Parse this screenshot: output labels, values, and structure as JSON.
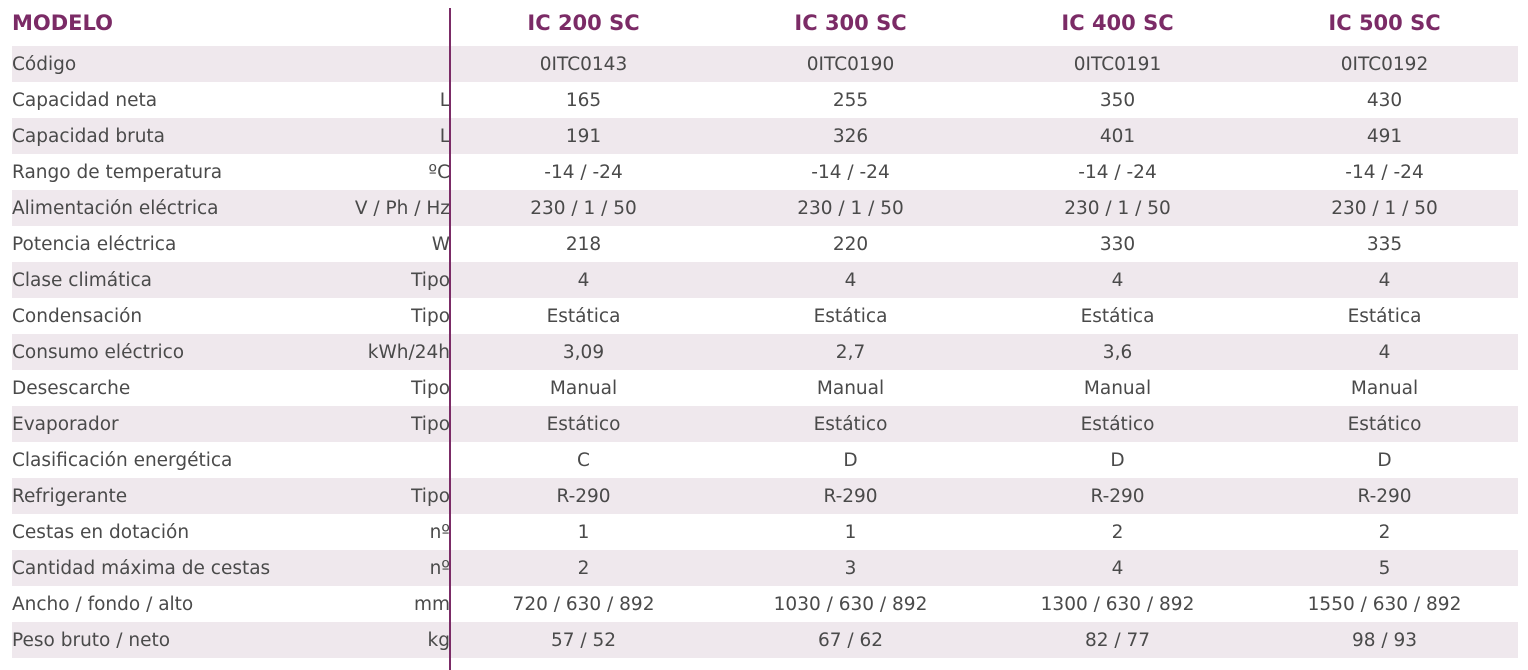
{
  "header": {
    "model_label": "MODELO",
    "models": [
      "IC 200 SC",
      "IC 300 SC",
      "IC 400  SC",
      "IC 500 SC"
    ]
  },
  "rows": [
    {
      "label": "Código",
      "unit": "",
      "values": [
        "0ITC0143",
        "0ITC0190",
        "0ITC0191",
        "0ITC0192"
      ]
    },
    {
      "label": "Capacidad neta",
      "unit": "L",
      "values": [
        "165",
        "255",
        "350",
        "430"
      ]
    },
    {
      "label": "Capacidad bruta",
      "unit": "L",
      "values": [
        "191",
        "326",
        "401",
        "491"
      ]
    },
    {
      "label": "Rango de temperatura",
      "unit": "ºC",
      "values": [
        "-14 / -24",
        "-14 / -24",
        "-14 / -24",
        "-14 / -24"
      ]
    },
    {
      "label": "Alimentación eléctrica",
      "unit": "V / Ph / Hz",
      "values": [
        "230 / 1 / 50",
        "230 / 1 / 50",
        "230 / 1 / 50",
        "230 / 1 / 50"
      ]
    },
    {
      "label": "Potencia eléctrica",
      "unit": "W",
      "values": [
        "218",
        "220",
        "330",
        "335"
      ]
    },
    {
      "label": "Clase climática",
      "unit": "Tipo",
      "values": [
        "4",
        "4",
        "4",
        "4"
      ]
    },
    {
      "label": "Condensación",
      "unit": "Tipo",
      "values": [
        "Estática",
        "Estática",
        "Estática",
        "Estática"
      ]
    },
    {
      "label": "Consumo eléctrico",
      "unit": "kWh/24h",
      "values": [
        "3,09",
        "2,7",
        "3,6",
        "4"
      ]
    },
    {
      "label": "Desescarche",
      "unit": "Tipo",
      "values": [
        "Manual",
        "Manual",
        "Manual",
        "Manual"
      ]
    },
    {
      "label": "Evaporador",
      "unit": "Tipo",
      "values": [
        "Estático",
        "Estático",
        "Estático",
        "Estático"
      ]
    },
    {
      "label": "Clasificación energética",
      "unit": "",
      "values": [
        "C",
        "D",
        "D",
        "D"
      ]
    },
    {
      "label": "Refrigerante",
      "unit": "Tipo",
      "values": [
        "R-290",
        "R-290",
        "R-290",
        "R-290"
      ]
    },
    {
      "label": "Cestas en dotación",
      "unit": "nº",
      "values": [
        "1",
        "1",
        "2",
        "2"
      ]
    },
    {
      "label": "Cantidad máxima de cestas",
      "unit": "nº",
      "values": [
        "2",
        "3",
        "4",
        "5"
      ]
    },
    {
      "label": "Ancho / fondo / alto",
      "unit": "mm",
      "values": [
        "720 / 630 / 892",
        "1030 / 630 / 892",
        "1300 / 630 / 892",
        "1550 / 630 / 892"
      ]
    },
    {
      "label": "Peso bruto / neto",
      "unit": "kg",
      "values": [
        "57 / 52",
        "67 / 62",
        "82 / 77",
        "98 / 93"
      ]
    }
  ],
  "colors": {
    "accent": "#7b2b66",
    "row_shade": "#efe8ed",
    "text": "#4a4a4a"
  }
}
